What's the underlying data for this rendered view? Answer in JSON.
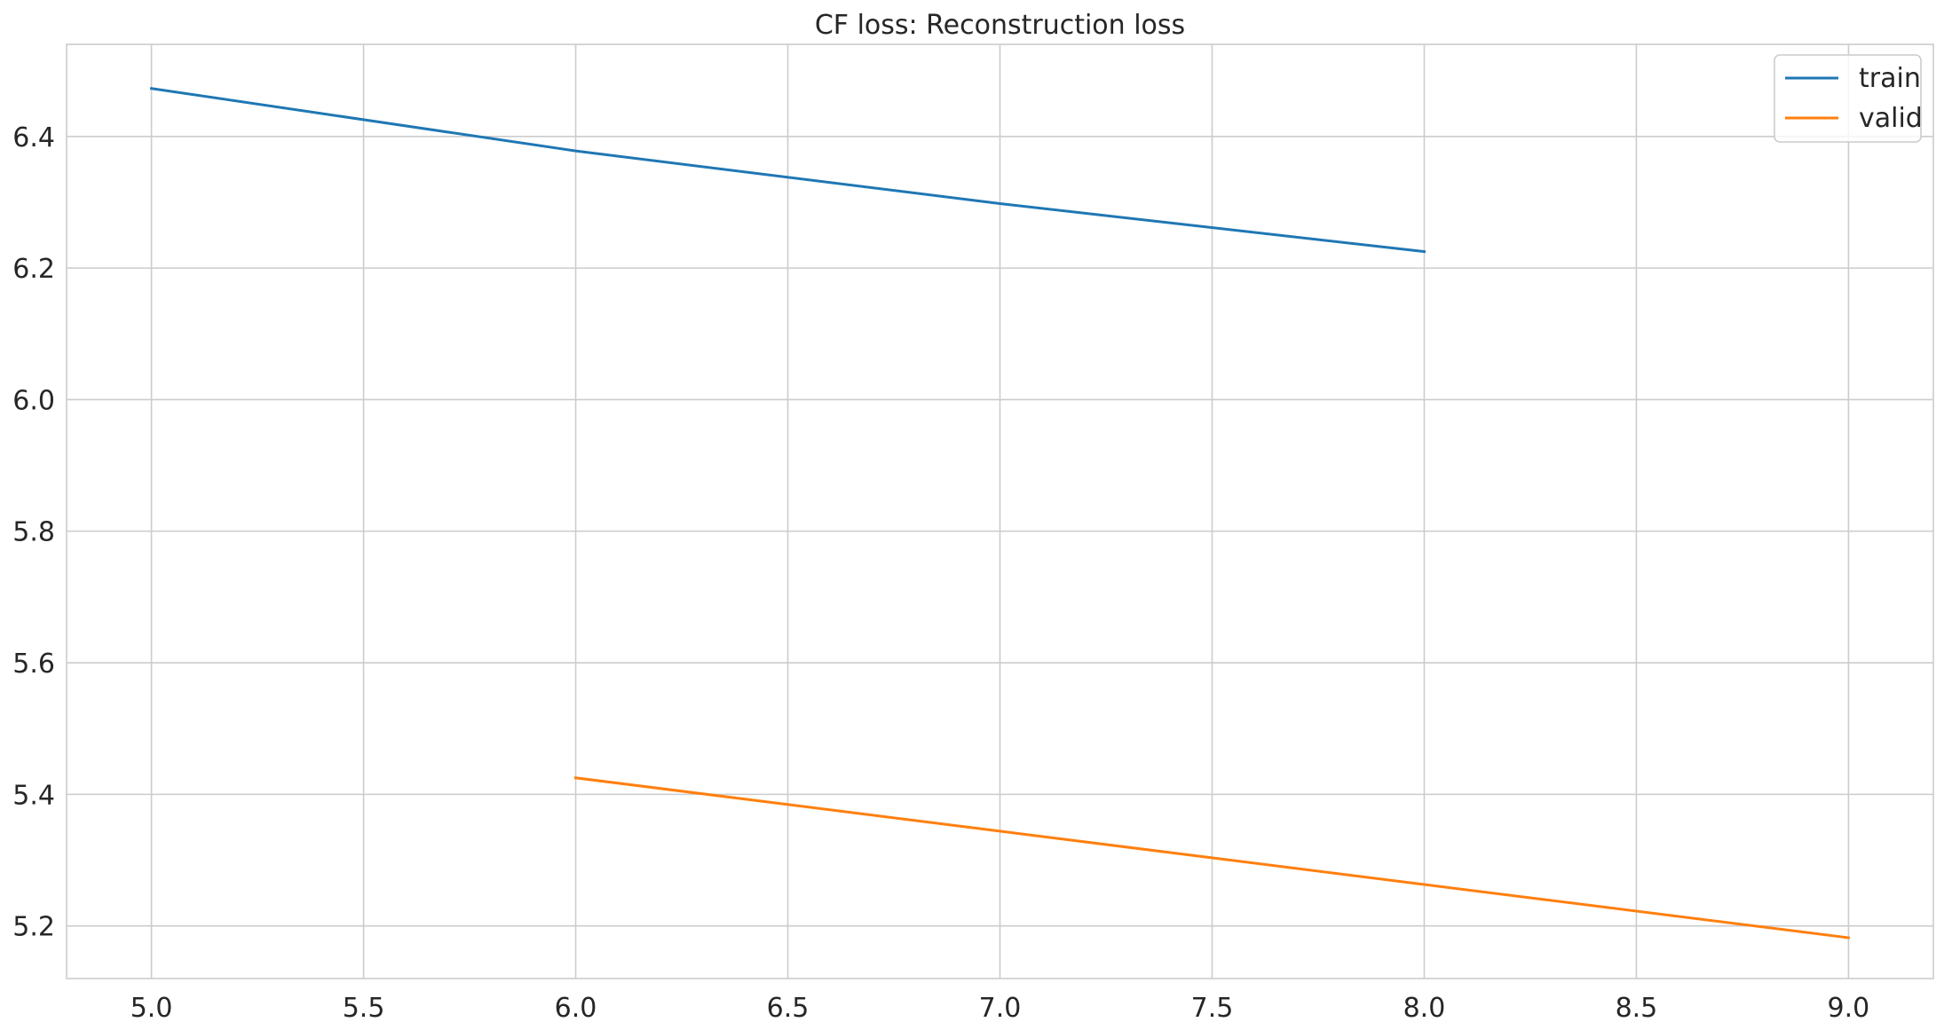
{
  "chart_data": {
    "type": "line",
    "title": "CF loss: Reconstruction loss",
    "xlabel": "",
    "ylabel": "",
    "xlim": [
      4.8,
      9.2
    ],
    "ylim": [
      5.12,
      6.54
    ],
    "x_ticks": [
      5.0,
      5.5,
      6.0,
      6.5,
      7.0,
      7.5,
      8.0,
      8.5,
      9.0
    ],
    "x_tick_labels": [
      "5.0",
      "5.5",
      "6.0",
      "6.5",
      "7.0",
      "7.5",
      "8.0",
      "8.5",
      "9.0"
    ],
    "y_ticks": [
      5.2,
      5.4,
      5.6,
      5.8,
      6.0,
      6.2,
      6.4
    ],
    "y_tick_labels": [
      "5.2",
      "5.4",
      "5.6",
      "5.8",
      "6.0",
      "6.2",
      "6.4"
    ],
    "grid": true,
    "legend_position": "top-right",
    "series": [
      {
        "name": "train",
        "color": "#1f77b4",
        "x": [
          5,
          6,
          7,
          8
        ],
        "y": [
          6.473,
          6.378,
          6.298,
          6.225
        ]
      },
      {
        "name": "valid",
        "color": "#ff7f0e",
        "x": [
          6,
          7,
          8,
          9
        ],
        "y": [
          5.425,
          5.344,
          5.263,
          5.182
        ]
      }
    ]
  }
}
